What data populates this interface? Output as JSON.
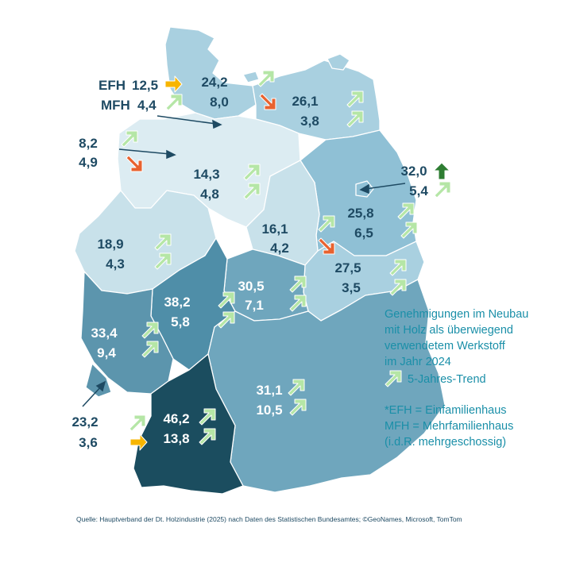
{
  "colors": {
    "trend_up": "#b5e6a6",
    "trend_down": "#e8622f",
    "trend_flat": "#f7b500",
    "trend_strong_up": "#2e7d32",
    "label_dark": "#1e4a63",
    "legend_text": "#1a8fa8"
  },
  "region_key": {
    "label_efh": "EFH",
    "label_mfh": "MFH"
  },
  "regions": [
    {
      "key": "sh",
      "efh": "24,2",
      "mfh": "8,0",
      "efh_trend": "up",
      "mfh_trend": "down"
    },
    {
      "key": "hh",
      "efh": "12,5",
      "mfh": "4,4",
      "efh_trend": "flat",
      "mfh_trend": "up"
    },
    {
      "key": "mv",
      "efh": "26,1",
      "mfh": "3,8",
      "efh_trend": "up",
      "mfh_trend": "up"
    },
    {
      "key": "hb",
      "efh": "8,2",
      "mfh": "4,9",
      "efh_trend": "up",
      "mfh_trend": "down"
    },
    {
      "key": "ni",
      "efh": "14,3",
      "mfh": "4,8",
      "efh_trend": "up",
      "mfh_trend": "up"
    },
    {
      "key": "be",
      "efh": "32,0",
      "mfh": "5,4",
      "efh_trend": "strong-up",
      "mfh_trend": "up"
    },
    {
      "key": "bb",
      "efh": "25,8",
      "mfh": "6,5",
      "efh_trend": "up",
      "mfh_trend": "up"
    },
    {
      "key": "st",
      "efh": "16,1",
      "mfh": "4,2",
      "efh_trend": "up",
      "mfh_trend": "down"
    },
    {
      "key": "nw",
      "efh": "18,9",
      "mfh": "4,3",
      "efh_trend": "up",
      "mfh_trend": "up"
    },
    {
      "key": "sn",
      "efh": "27,5",
      "mfh": "3,5",
      "efh_trend": "up",
      "mfh_trend": "up"
    },
    {
      "key": "th",
      "efh": "30,5",
      "mfh": "7,1",
      "efh_trend": "up",
      "mfh_trend": "up"
    },
    {
      "key": "he",
      "efh": "38,2",
      "mfh": "5,8",
      "efh_trend": "up",
      "mfh_trend": "up"
    },
    {
      "key": "rp",
      "efh": "33,4",
      "mfh": "9,4",
      "efh_trend": "up",
      "mfh_trend": "up"
    },
    {
      "key": "sl",
      "efh": "23,2",
      "mfh": "3,6",
      "efh_trend": "up",
      "mfh_trend": "flat"
    },
    {
      "key": "by",
      "efh": "31,1",
      "mfh": "10,5",
      "efh_trend": "up",
      "mfh_trend": "up"
    },
    {
      "key": "bw",
      "efh": "46,2",
      "mfh": "13,8",
      "efh_trend": "up",
      "mfh_trend": "up"
    }
  ],
  "legend": {
    "title_lines": [
      "Genehmigungen im Neubau",
      "mit Holz als überwiegend",
      "verwendetem Werkstoff",
      "im Jahr 2024"
    ],
    "trend_label": "5-Jahres-Trend",
    "abbrev_lines": [
      "*EFH = Einfamilienhaus",
      "MFH = Mehrfamilienhaus",
      "(i.d.R. mehrgeschossig)"
    ]
  },
  "source": "Quelle: Hauptverband der Dt. Holzindustrie (2025) nach Daten des Statistischen Bundesamtes; ©GeoNames, Microsoft, TomTom"
}
